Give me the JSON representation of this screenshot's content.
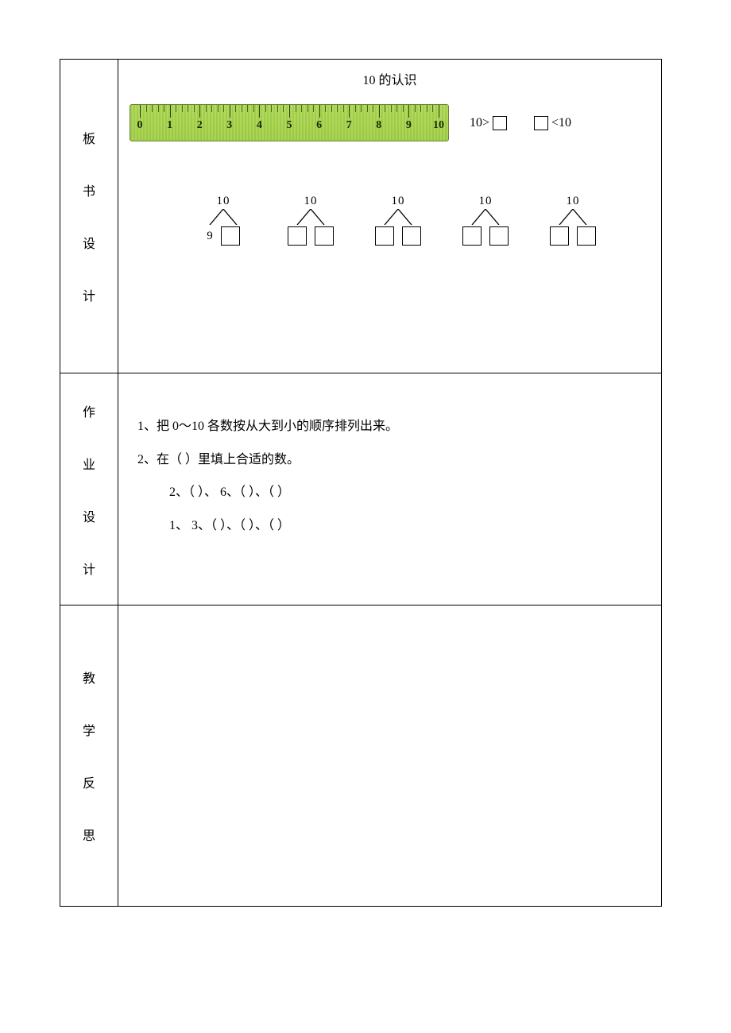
{
  "title": "10 的认识",
  "ruler": {
    "min": 0,
    "max": 10,
    "border_color": "#6c8440",
    "fill_light": "#d6ec9e",
    "fill_dark": "#c3e07a",
    "tick_color": "#2d4012",
    "label_color": "#1a2a05",
    "labels": [
      "0",
      "1",
      "2",
      "3",
      "4",
      "5",
      "6",
      "7",
      "8",
      "9",
      "10"
    ]
  },
  "ineq": {
    "left": "10>",
    "right": "<10"
  },
  "decomp": {
    "top_label": "10",
    "count": 5,
    "first_left_value": "9",
    "box_border": "#000000",
    "line_color": "#000000"
  },
  "sections": {
    "s1": "板",
    "s1b": "书",
    "s1c": "设",
    "s1d": "计",
    "s2": "作",
    "s2b": "业",
    "s2c": "设",
    "s2d": "计",
    "s3": "教",
    "s3b": "学",
    "s3c": "反",
    "s3d": "思"
  },
  "hw": {
    "l1": "1、把 0～10 各数按从大到小的顺序排列出来。",
    "l2": "2、在（ ）里填上合适的数。",
    "l3": "2、（  ）、 6、（  ）、（  ）",
    "l4": "1、 3、（  ）、（  ）、（  ）"
  }
}
